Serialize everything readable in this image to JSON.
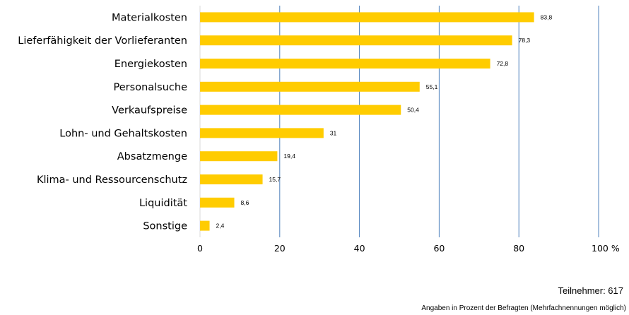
{
  "chart_data": {
    "type": "bar",
    "orientation": "horizontal",
    "categories": [
      "Materialkosten",
      "Lieferfähigkeit der Vorlieferanten",
      "Energiekosten",
      "Personalsuche",
      "Verkaufspreise",
      "Lohn- und Gehaltskosten",
      "Absatzmenge",
      "Klima- und Ressourcenschutz",
      "Liquidität",
      "Sonstige"
    ],
    "values": [
      83.8,
      78.3,
      72.8,
      55.1,
      50.4,
      31,
      19.4,
      15.7,
      8.6,
      2.4
    ],
    "value_labels": [
      "83,8",
      "78,3",
      "72,8",
      "55,1",
      "50,4",
      "31",
      "19,4",
      "15,7",
      "8,6",
      "2,4"
    ],
    "xticks": [
      "0",
      "20",
      "40",
      "60",
      "80",
      "100 %"
    ],
    "xlim": [
      0,
      100
    ],
    "grid": true,
    "bar_color": "#FFCC00",
    "grid_color": "#4F81BD"
  },
  "notes": {
    "participants": "Teilnehmer: 617",
    "footnote": "Angaben in Prozent der Befragten (Mehrfachnennungen möglich)"
  }
}
